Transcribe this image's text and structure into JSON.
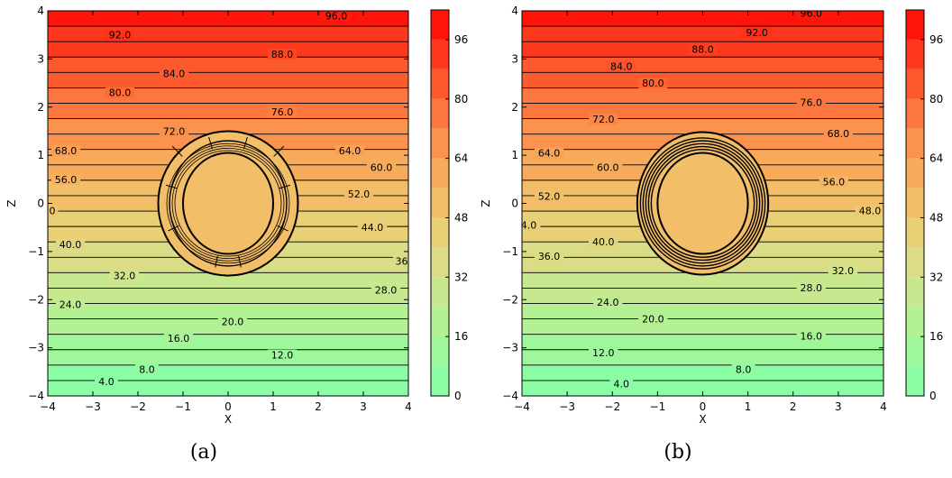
{
  "chart_data": [
    {
      "type": "contour",
      "caption": "(a)",
      "xlabel": "X",
      "ylabel": "Z",
      "xlim": [
        -4,
        4
      ],
      "ylim": [
        -4,
        4
      ],
      "x_ticks": [
        "−4",
        "−3",
        "−2",
        "−1",
        "0",
        "1",
        "2",
        "3",
        "4"
      ],
      "y_ticks": [
        "−4",
        "−3",
        "−2",
        "−1",
        "0",
        "1",
        "2",
        "3",
        "4"
      ],
      "colorbar_ticks": [
        "0",
        "16",
        "32",
        "48",
        "64",
        "80",
        "96"
      ],
      "colorbar_range": [
        0,
        104
      ],
      "level_step": 4,
      "fill_step": 8,
      "field_bottom": 0,
      "field_top": 100,
      "sphere_value": 52,
      "contour_labels": [
        {
          "text": "96.0",
          "x": 2.4,
          "y": 3.9
        },
        {
          "text": "92.0",
          "x": -2.4,
          "y": 3.5
        },
        {
          "text": "88.0",
          "x": 1.2,
          "y": 3.1
        },
        {
          "text": "84.0",
          "x": -1.2,
          "y": 2.7
        },
        {
          "text": "80.0",
          "x": -2.4,
          "y": 2.3
        },
        {
          "text": "76.0",
          "x": 1.2,
          "y": 1.9
        },
        {
          "text": "72.0",
          "x": -1.2,
          "y": 1.5
        },
        {
          "text": "68.0",
          "x": -3.6,
          "y": 1.1
        },
        {
          "text": "64.0",
          "x": 2.7,
          "y": 1.1
        },
        {
          "text": "60.0",
          "x": 3.4,
          "y": 0.75
        },
        {
          "text": "56.0",
          "x": -3.6,
          "y": 0.5
        },
        {
          "text": "52.0",
          "x": 2.9,
          "y": 0.2
        },
        {
          "text": "0",
          "x": -3.9,
          "y": -0.15
        },
        {
          "text": "44.0",
          "x": 3.2,
          "y": -0.5
        },
        {
          "text": "40.0",
          "x": -3.5,
          "y": -0.85
        },
        {
          "text": "36",
          "x": 3.85,
          "y": -1.2
        },
        {
          "text": "32.0",
          "x": -2.3,
          "y": -1.5
        },
        {
          "text": "28.0",
          "x": 3.5,
          "y": -1.8
        },
        {
          "text": "24.0",
          "x": -3.5,
          "y": -2.1
        },
        {
          "text": "20.0",
          "x": 0.1,
          "y": -2.45
        },
        {
          "text": "16.0",
          "x": -1.1,
          "y": -2.8
        },
        {
          "text": "12.0",
          "x": 1.2,
          "y": -3.15
        },
        {
          "text": "8.0",
          "x": -1.8,
          "y": -3.45
        },
        {
          "text": "4.0",
          "x": -2.7,
          "y": -3.7
        }
      ]
    },
    {
      "type": "contour",
      "caption": "(b)",
      "xlabel": "X",
      "ylabel": "Z",
      "xlim": [
        -4,
        4
      ],
      "ylim": [
        -4,
        4
      ],
      "x_ticks": [
        "−4",
        "−3",
        "−2",
        "−1",
        "0",
        "1",
        "2",
        "3",
        "4"
      ],
      "y_ticks": [
        "−4",
        "−3",
        "−2",
        "−1",
        "0",
        "1",
        "2",
        "3",
        "4"
      ],
      "colorbar_ticks": [
        "0",
        "16",
        "32",
        "48",
        "64",
        "80",
        "96"
      ],
      "colorbar_range": [
        0,
        104
      ],
      "level_step": 4,
      "fill_step": 8,
      "field_bottom": 0,
      "field_top": 100,
      "sphere_value": 52,
      "contour_labels": [
        {
          "text": "96.0",
          "x": 2.4,
          "y": 3.95
        },
        {
          "text": "92.0",
          "x": 1.2,
          "y": 3.55
        },
        {
          "text": "88.0",
          "x": 0.0,
          "y": 3.2
        },
        {
          "text": "84.0",
          "x": -1.8,
          "y": 2.85
        },
        {
          "text": "80.0",
          "x": -1.1,
          "y": 2.5
        },
        {
          "text": "76.0",
          "x": 2.4,
          "y": 2.1
        },
        {
          "text": "72.0",
          "x": -2.2,
          "y": 1.75
        },
        {
          "text": "68.0",
          "x": 3.0,
          "y": 1.45
        },
        {
          "text": "64.0",
          "x": -3.4,
          "y": 1.05
        },
        {
          "text": "60.0",
          "x": -2.1,
          "y": 0.75
        },
        {
          "text": "56.0",
          "x": 2.9,
          "y": 0.45
        },
        {
          "text": "52.0",
          "x": -3.4,
          "y": 0.15
        },
        {
          "text": "48.0",
          "x": 3.7,
          "y": -0.15
        },
        {
          "text": "4.0",
          "x": -3.85,
          "y": -0.45
        },
        {
          "text": "40.0",
          "x": -2.2,
          "y": -0.8
        },
        {
          "text": "36.0",
          "x": -3.4,
          "y": -1.1
        },
        {
          "text": "32.0",
          "x": 3.1,
          "y": -1.4
        },
        {
          "text": "28.0",
          "x": 2.4,
          "y": -1.75
        },
        {
          "text": "24.0",
          "x": -2.1,
          "y": -2.05
        },
        {
          "text": "20.0",
          "x": -1.1,
          "y": -2.4
        },
        {
          "text": "16.0",
          "x": 2.4,
          "y": -2.75
        },
        {
          "text": "12.0",
          "x": -2.2,
          "y": -3.1
        },
        {
          "text": "8.0",
          "x": 0.9,
          "y": -3.45
        },
        {
          "text": "4.0",
          "x": -1.8,
          "y": -3.75
        }
      ]
    }
  ]
}
